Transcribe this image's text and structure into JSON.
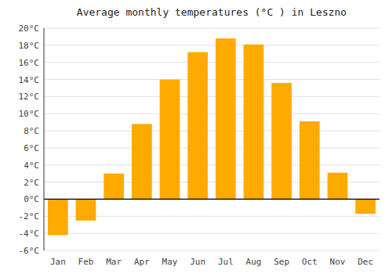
{
  "chart_data": {
    "type": "bar",
    "title": "Average monthly temperatures (°C ) in Leszno",
    "categories": [
      "Jan",
      "Feb",
      "Mar",
      "Apr",
      "May",
      "Jun",
      "Jul",
      "Aug",
      "Sep",
      "Oct",
      "Nov",
      "Dec"
    ],
    "values": [
      -4.2,
      -2.5,
      3.0,
      8.8,
      14.0,
      17.2,
      18.8,
      18.1,
      13.6,
      9.1,
      3.1,
      -1.7
    ],
    "color": "#FFAA00",
    "ylim": [
      -6,
      20
    ],
    "yticks": [
      {
        "value": -6,
        "label": "-6°C"
      },
      {
        "value": -4,
        "label": "-4°C"
      },
      {
        "value": -2,
        "label": "-2°C"
      },
      {
        "value": 0,
        "label": "0°C"
      },
      {
        "value": 2,
        "label": "2°C"
      },
      {
        "value": 4,
        "label": "4°C"
      },
      {
        "value": 6,
        "label": "6°C"
      },
      {
        "value": 8,
        "label": "8°C"
      },
      {
        "value": 10,
        "label": "10°C"
      },
      {
        "value": 12,
        "label": "12°C"
      },
      {
        "value": 14,
        "label": "14°C"
      },
      {
        "value": 16,
        "label": "16°C"
      },
      {
        "value": 18,
        "label": "18°C"
      },
      {
        "value": 20,
        "label": "20°C"
      }
    ],
    "grid": true
  }
}
